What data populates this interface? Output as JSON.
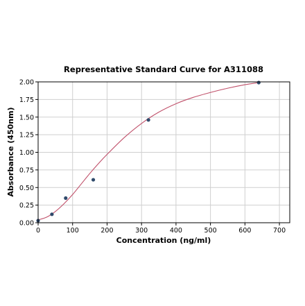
{
  "chart_data": {
    "type": "scatter",
    "title": "Representative Standard Curve for A311088",
    "xlabel": "Concentration (ng/ml)",
    "ylabel": "Absorbance (450nm)",
    "xlim": [
      0,
      730
    ],
    "ylim": [
      0,
      2.0
    ],
    "xticks": [
      "0",
      "100",
      "200",
      "300",
      "400",
      "500",
      "600",
      "700"
    ],
    "yticks": [
      "0.00",
      "0.25",
      "0.50",
      "0.75",
      "1.00",
      "1.25",
      "1.50",
      "1.75",
      "2.00"
    ],
    "grid": true,
    "series": [
      {
        "kind": "points",
        "x": [
          0,
          40,
          80,
          160,
          320,
          640
        ],
        "y": [
          0.03,
          0.12,
          0.35,
          0.61,
          1.46,
          1.99
        ]
      },
      {
        "kind": "fit-curve",
        "x": [
          0,
          25,
          50,
          75,
          100,
          125,
          150,
          175,
          200,
          250,
          300,
          350,
          400,
          450,
          500,
          550,
          600,
          640
        ],
        "y": [
          0.04,
          0.08,
          0.16,
          0.27,
          0.4,
          0.55,
          0.7,
          0.84,
          0.97,
          1.21,
          1.41,
          1.57,
          1.69,
          1.78,
          1.85,
          1.91,
          1.96,
          1.99
        ]
      }
    ],
    "colors": {
      "points": "#2f4a6b",
      "curve": "#c0506a"
    }
  }
}
